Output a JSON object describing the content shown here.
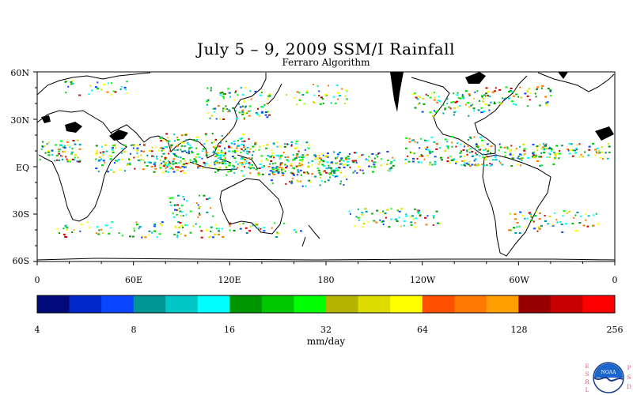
{
  "title": "July 5 – 9, 2009 SSM/I Rainfall",
  "subtitle": "Ferraro Algorithm",
  "map": {
    "lat_labels": [
      "60N",
      "30N",
      "EQ",
      "30S",
      "60S"
    ],
    "lon_labels": [
      "0",
      "60E",
      "120E",
      "180",
      "120W",
      "60W",
      "0"
    ]
  },
  "colorbar": {
    "unit": "mm/day",
    "tick_labels": [
      "4",
      "8",
      "16",
      "32",
      "64",
      "128",
      "256"
    ],
    "colors": [
      "#000a78",
      "#0028c8",
      "#0a46ff",
      "#009696",
      "#00c8c8",
      "#00ffff",
      "#009600",
      "#00c800",
      "#00ff00",
      "#b4b400",
      "#dcdc00",
      "#ffff00",
      "#ff5000",
      "#ff7800",
      "#ffa000",
      "#960000",
      "#c80000",
      "#ff0000"
    ]
  },
  "logo": {
    "left_text": "ESRL",
    "right_text": "PSD",
    "badge_text": "NOAA"
  }
}
